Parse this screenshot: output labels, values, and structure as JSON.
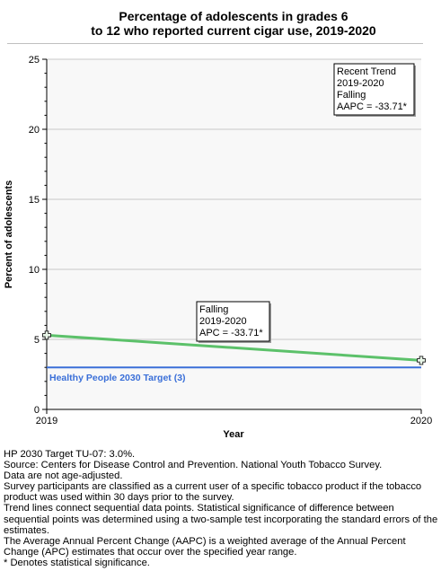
{
  "chart_data": {
    "type": "line",
    "title": "Percentage of adolescents in grades 6 to 12 who reported current cigar use, 2019-2020",
    "title_lines": [
      "Percentage of adolescents in grades 6",
      "to 12 who reported current cigar use, 2019-2020"
    ],
    "xlabel": "Year",
    "ylabel": "Percent of adolescents",
    "x": [
      2019,
      2020
    ],
    "xlim": [
      2019,
      2020
    ],
    "ylim": [
      0,
      25
    ],
    "yticks": [
      0,
      5,
      10,
      15,
      20,
      25
    ],
    "xticks": [
      2019,
      2020
    ],
    "grid": true,
    "series": [
      {
        "values": [
          5.3,
          3.5
        ],
        "color": "#5cc16a"
      }
    ],
    "target": {
      "label": "Healthy People 2030 Target (3)",
      "value": 3.0,
      "color": "#3a6fd8"
    },
    "annotations": [
      {
        "lines": [
          "Falling",
          "2019-2020",
          "APC = -33.71*"
        ]
      },
      {
        "lines": [
          "Recent Trend",
          "2019-2020",
          "Falling",
          "AAPC = -33.71*"
        ]
      }
    ]
  },
  "notes": [
    "HP 2030 Target TU-07: 3.0%.",
    "Source: Centers for Disease Control and Prevention. National Youth Tobacco Survey.",
    "Data are not age-adjusted.",
    "Survey participants are classified as a current user of a specific tobacco product if the tobacco product was used within 30 days prior to the survey.",
    "Trend lines connect sequential data points. Statistical significance of difference between sequential points was determined using a two-sample test incorporating the standard errors of the estimates.",
    "The Average Annual Percent Change (AAPC) is a weighted average of the Annual Percent Change (APC) estimates that occur over the specified year range.",
    "* Denotes statistical significance."
  ]
}
